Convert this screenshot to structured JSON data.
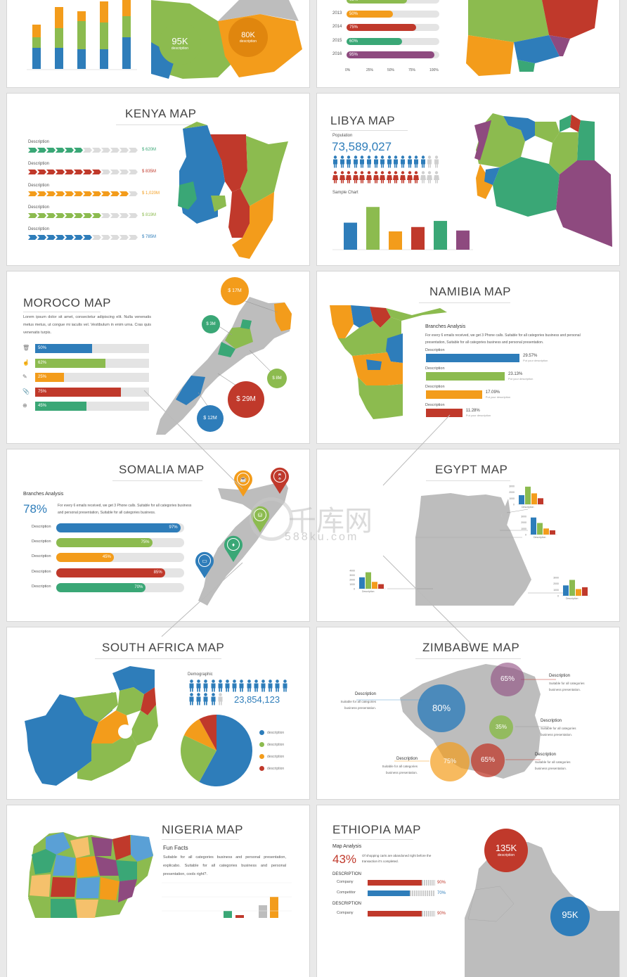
{
  "colors": {
    "blue": "#2e7dba",
    "green": "#8cbb4f",
    "orange": "#f39c1b",
    "red": "#c0392b",
    "teal": "#3aa776",
    "purple": "#8e4a7f",
    "gray": "#bdbdbd"
  },
  "top_left": {
    "bubble1_value": "95K",
    "bubble1_label": "description",
    "bubble2_value": "80K",
    "bubble2_label": "description"
  },
  "top_right": {
    "rows": [
      {
        "year": "2012",
        "pct": 0.65,
        "label": "65%",
        "color": "green"
      },
      {
        "year": "2013",
        "pct": 0.5,
        "label": "50%",
        "color": "orange"
      },
      {
        "year": "2014",
        "pct": 0.75,
        "label": "75%",
        "color": "red"
      },
      {
        "year": "2015",
        "pct": 0.6,
        "label": "60%",
        "color": "teal"
      },
      {
        "year": "2016",
        "pct": 0.95,
        "label": "95%",
        "color": "purple"
      }
    ],
    "axis": [
      "0%",
      "25%",
      "50%",
      "75%",
      "100%"
    ]
  },
  "kenya": {
    "title": "KENYA MAP",
    "rows": [
      {
        "label": "Description",
        "value": "$ 620M",
        "filled": 6,
        "color": "teal"
      },
      {
        "label": "Description",
        "value": "$ 835M",
        "filled": 8,
        "color": "red"
      },
      {
        "label": "Description",
        "value": "$ 1,020M",
        "filled": 11,
        "color": "orange"
      },
      {
        "label": "Description",
        "value": "$ 819M",
        "filled": 8,
        "color": "green"
      },
      {
        "label": "Description",
        "value": "$ 785M",
        "filled": 7,
        "color": "blue"
      }
    ]
  },
  "libya": {
    "title": "LIBYA MAP",
    "population_label": "Population",
    "population": "73,589,027",
    "male_filled": 14,
    "female_filled": 13,
    "total_icons": 16,
    "chart_label": "Sample Chart",
    "chart_data": {
      "type": "bar",
      "values": [
        62,
        98,
        42,
        52,
        66,
        44
      ],
      "colors": [
        "blue",
        "green",
        "orange",
        "red",
        "teal",
        "purple"
      ]
    }
  },
  "morocco": {
    "title": "MOROCO MAP",
    "text": "Lorem ipsum dolor sit amet, consectetur adipiscing elit. Nulla venenatis metus metus, ut congue mi iaculis vel. Vestibulum in enim urna. Cras quis venenatis turpis.",
    "rows": [
      {
        "icon": "trash-icon",
        "glyph": "🗑",
        "pct": 0.5,
        "label": "50%",
        "color": "blue"
      },
      {
        "icon": "hand-icon",
        "glyph": "☝",
        "pct": 0.62,
        "label": "62%",
        "color": "green"
      },
      {
        "icon": "pencil-icon",
        "glyph": "✎",
        "pct": 0.25,
        "label": "25%",
        "color": "orange"
      },
      {
        "icon": "paperclip-icon",
        "glyph": "📎",
        "pct": 0.75,
        "label": "75%",
        "color": "red"
      },
      {
        "icon": "zoom-icon",
        "glyph": "⊕",
        "pct": 0.45,
        "label": "45%",
        "color": "teal"
      }
    ],
    "bubbles": {
      "b1": "$ 17M",
      "b2": "$ 3M",
      "b3": "$ 8M",
      "b4": "$ 29M",
      "b5": "$ 12M"
    }
  },
  "namibia": {
    "title": "NAMIBIA MAP",
    "subtitle": "Branches Analysis",
    "text": "For every 6 emails received, we get 3 Phone calls. Suitable for all categories business and personal presentation, Suitable for all categories business and personal presentation.",
    "rows": [
      {
        "label": "Description",
        "pct": "29.57%",
        "frac": 0.95,
        "sub": "Put your description",
        "color": "blue"
      },
      {
        "label": "Description",
        "pct": "23.13%",
        "frac": 0.8,
        "sub": "Put your description",
        "color": "green"
      },
      {
        "label": "Description",
        "pct": "17.09%",
        "frac": 0.57,
        "sub": "Put your description",
        "color": "orange"
      },
      {
        "label": "Description",
        "pct": "11.28%",
        "frac": 0.37,
        "sub": "Put your description",
        "color": "red"
      }
    ]
  },
  "somalia": {
    "title": "SOMALIA MAP",
    "subtitle": "Branches Analysis",
    "big": "78%",
    "text": "For every 6 emails received, we get 3 Phone calls. Suitable for all categories business and personal presentation, Suitable for all categories business.",
    "rows": [
      {
        "label": "Description",
        "pct": 0.97,
        "value": "97%",
        "color": "blue"
      },
      {
        "label": "Description",
        "pct": 0.75,
        "value": "75%",
        "color": "green"
      },
      {
        "label": "Description",
        "pct": 0.45,
        "value": "45%",
        "color": "orange"
      },
      {
        "label": "Description",
        "pct": 0.85,
        "value": "85%",
        "color": "red"
      },
      {
        "label": "Description",
        "pct": 0.7,
        "value": "70%",
        "color": "teal"
      }
    ]
  },
  "egypt": {
    "title": "EGYPT MAP",
    "chart_data": [
      {
        "type": "bar",
        "values": [
          1500,
          2900,
          1800,
          1000
        ],
        "ticks": [
          "3000",
          "2000",
          "1000",
          "0"
        ],
        "label": "Description"
      },
      {
        "type": "bar",
        "values": [
          2800,
          1900,
          1000,
          700
        ],
        "ticks": [
          "3000",
          "2000",
          "1000",
          "0"
        ],
        "label": "Description"
      },
      {
        "type": "bar",
        "values": [
          2500,
          3600,
          1500,
          1000
        ],
        "ticks": [
          "4000",
          "3000",
          "2000",
          "1000",
          "0"
        ],
        "label": "Description"
      },
      {
        "type": "bar",
        "values": [
          1700,
          2600,
          1100,
          1400
        ],
        "ticks": [
          "3000",
          "2000",
          "1000",
          "0"
        ],
        "label": "Description"
      }
    ]
  },
  "south_africa": {
    "title": "SOUTH AFRICA MAP",
    "demo_label": "Demographic",
    "population": "23,854,123",
    "top_filled": 14,
    "bottom_filled": 4,
    "total": 14,
    "chart_data": {
      "type": "pie",
      "values": [
        58,
        24,
        10,
        8
      ],
      "colors": [
        "blue",
        "green",
        "orange",
        "red"
      ]
    },
    "legend": [
      "description",
      "description",
      "description",
      "description"
    ]
  },
  "zimbabwe": {
    "title": "ZIMBABWE MAP",
    "bubbles": {
      "b1": "80%",
      "b2": "65%",
      "b3": "35%",
      "b4": "75%",
      "b5": "65%"
    },
    "callouts": [
      {
        "head": "Description",
        "body": "Suitable for all categories business presentation."
      },
      {
        "head": "Description",
        "body": "Suitable for all categories business presentation."
      },
      {
        "head": "Description",
        "body": "Suitable for all categories business presentation."
      },
      {
        "head": "Description",
        "body": "Suitable for all categories business presentation."
      },
      {
        "head": "Description",
        "body": "Suitable for all categories business presentation."
      }
    ]
  },
  "nigeria": {
    "title": "NIGERIA MAP",
    "subtitle": "Fun Facts",
    "text": "Suitable for all categories business and personal presentation, explicabo. Suitable for all categories business and personal presentation, cools right?."
  },
  "ethiopia": {
    "title": "ETHIOPIA MAP",
    "subtitle": "Map Analysis",
    "big": "43%",
    "text": "Of shopping carts are abandoned right before the transaction it's completed.",
    "bubble": "135K",
    "bubble_label": "description",
    "bubble2": "95K",
    "desc1": "DESCRIPTION",
    "desc2": "DESCRIPTION",
    "rows": [
      {
        "label": "Company",
        "value": "90%",
        "color": "red"
      },
      {
        "label": "Competitor",
        "value": "70%",
        "color": "blue"
      },
      {
        "label": "Company",
        "value": "90%",
        "color": "red"
      }
    ]
  },
  "watermark": {
    "main": "千库网",
    "sub": "588ku.com"
  }
}
